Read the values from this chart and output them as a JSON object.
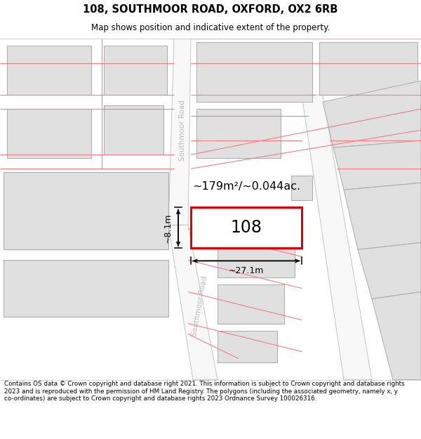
{
  "title_line1": "108, SOUTHMOOR ROAD, OXFORD, OX2 6RB",
  "title_line2": "Map shows position and indicative extent of the property.",
  "footer_text": "Contains OS data © Crown copyright and database right 2021. This information is subject to Crown copyright and database rights 2023 and is reproduced with the permission of HM Land Registry. The polygons (including the associated geometry, namely x, y co-ordinates) are subject to Crown copyright and database rights 2023 Ordnance Survey 100026316.",
  "map_bg": "#ffffff",
  "block_color": "#e0e0e0",
  "block_border": "#aaaaaa",
  "road_strip_color": "#ffffff",
  "road_strip_border": "#aaaaaa",
  "plot_line_color": "#f08080",
  "highlight_color": "#dd0000",
  "highlight_fill": "#ffffff",
  "dim_line_color": "#000000",
  "area_label": "~179m²/~0.044ac.",
  "width_label": "~27.1m",
  "height_label": "~8.1m",
  "property_label": "108",
  "road_label_color": "#bbbbbb"
}
